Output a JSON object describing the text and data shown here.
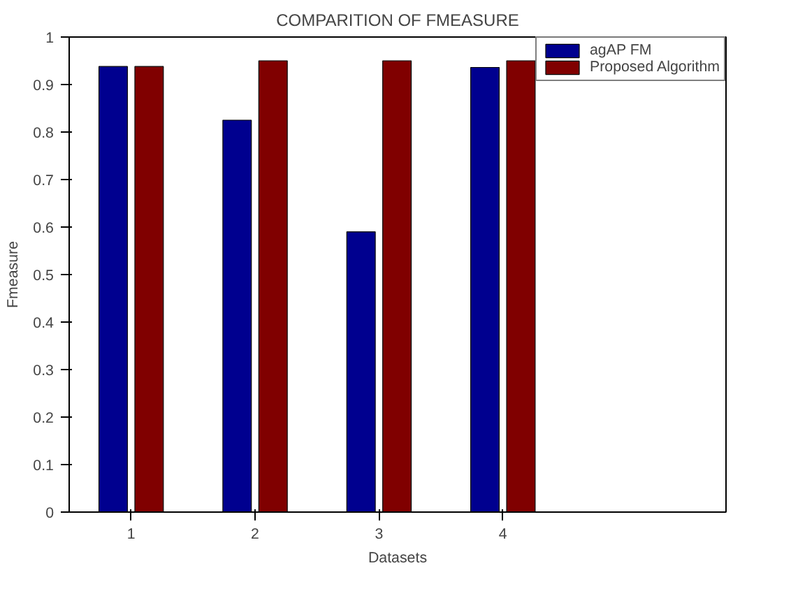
{
  "chart_data": {
    "type": "bar",
    "title": "COMPARITION OF FMEASURE",
    "xlabel": "Datasets",
    "ylabel": "Fmeasure",
    "categories": [
      "1",
      "2",
      "3",
      "4"
    ],
    "series": [
      {
        "name": "agAP FM",
        "color": "#00008f",
        "values": [
          0.938,
          0.825,
          0.59,
          0.936
        ]
      },
      {
        "name": "Proposed Algorithm",
        "color": "#800000",
        "values": [
          0.938,
          0.95,
          0.95,
          0.95
        ]
      }
    ],
    "ylim": [
      0,
      1
    ],
    "yticks": [
      0,
      0.1,
      0.2,
      0.3,
      0.4,
      0.5,
      0.6,
      0.7,
      0.8,
      0.9,
      1
    ],
    "grid": false,
    "legend": "top right"
  }
}
